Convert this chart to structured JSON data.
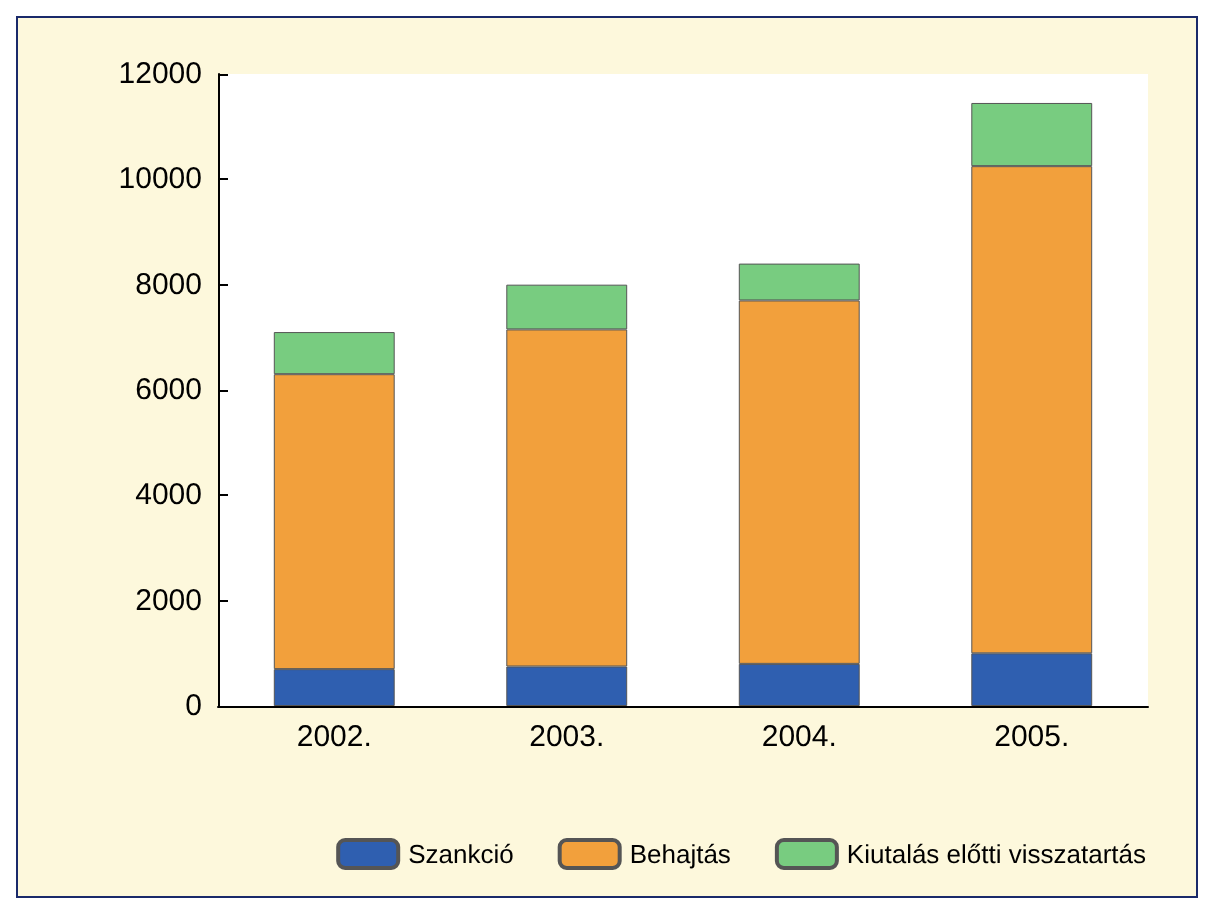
{
  "chart_data": {
    "type": "bar",
    "stacked": true,
    "categories": [
      "2002.",
      "2003.",
      "2004.",
      "2005."
    ],
    "series": [
      {
        "name": "Szankció",
        "color": "#2f5fb0",
        "values": [
          700,
          750,
          800,
          1000
        ]
      },
      {
        "name": "Behajtás",
        "color": "#f2a03c",
        "values": [
          5600,
          6400,
          6900,
          9250
        ]
      },
      {
        "name": "Kiutalás előtti visszatartás",
        "color": "#78cc80",
        "values": [
          800,
          850,
          700,
          1200
        ]
      }
    ],
    "ylim": [
      0,
      12000
    ],
    "yticks": [
      0,
      2000,
      4000,
      6000,
      8000,
      10000,
      12000
    ],
    "grid": false,
    "legend": "bottom"
  }
}
